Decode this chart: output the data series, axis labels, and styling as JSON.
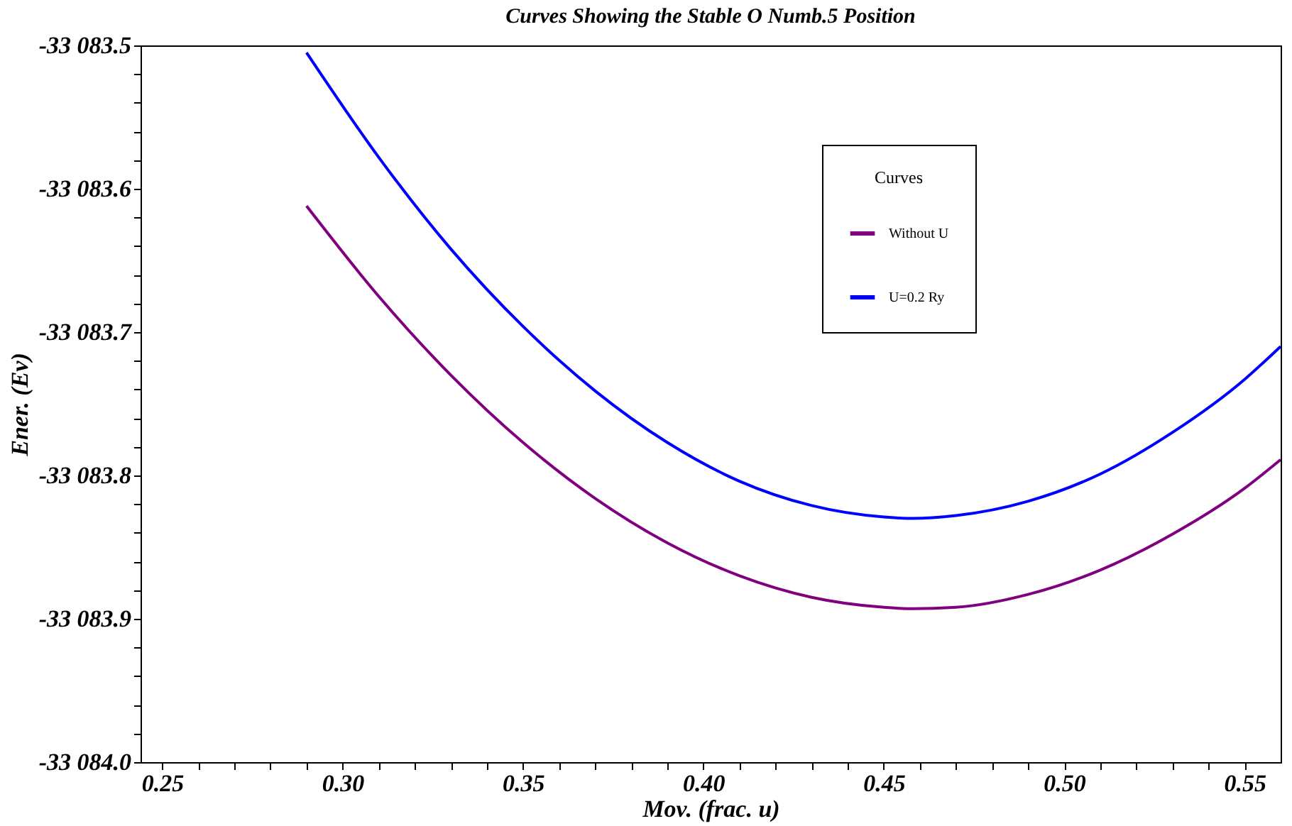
{
  "chart_data": {
    "type": "line",
    "title": "Curves Showing the Stable O Numb.5 Position",
    "xlabel": "Mov. (frac. u)",
    "ylabel": "Ener. (Ev)",
    "legend_title": "Curves",
    "legend": "top right",
    "grid": false,
    "marker": "none",
    "line_style": "solid",
    "x": [
      0.29,
      0.31,
      0.33,
      0.35,
      0.37,
      0.39,
      0.41,
      0.43,
      0.45,
      0.458,
      0.47,
      0.49,
      0.51,
      0.53,
      0.55,
      0.56
    ],
    "series": [
      {
        "name": "Without U",
        "color": "#800080",
        "values": [
          -33083.612,
          -33083.675,
          -33083.73,
          -33083.777,
          -33083.816,
          -33083.847,
          -33083.87,
          -33083.885,
          -33083.892,
          -33083.893,
          -33083.892,
          -33083.883,
          -33083.866,
          -33083.841,
          -33083.809,
          -33083.789
        ]
      },
      {
        "name": "U=0.2 Ry",
        "color": "#0000ff",
        "values": [
          -33083.505,
          -33083.578,
          -33083.642,
          -33083.696,
          -33083.741,
          -33083.777,
          -33083.804,
          -33083.821,
          -33083.829,
          -33083.83,
          -33083.828,
          -33083.818,
          -33083.799,
          -33083.77,
          -33083.733,
          -33083.71
        ]
      }
    ],
    "xlim": [
      0.244,
      0.56
    ],
    "ylim": [
      -33084.0,
      -33083.5
    ],
    "xticks": [
      0.25,
      {
        "value": 0.26,
        "label": null
      },
      {
        "value": 0.27,
        "label": null
      },
      {
        "value": 0.28,
        "label": null
      },
      {
        "value": 0.29,
        "label": null
      },
      {
        "value": 0.3,
        "label": "0.30"
      },
      {
        "value": 0.31,
        "label": null
      },
      {
        "value": 0.32,
        "label": null
      },
      {
        "value": 0.33,
        "label": null
      },
      {
        "value": 0.34,
        "label": null
      },
      0.35,
      {
        "value": 0.36,
        "label": null
      },
      {
        "value": 0.37,
        "label": null
      },
      {
        "value": 0.38,
        "label": null
      },
      {
        "value": 0.39,
        "label": null
      },
      {
        "value": 0.4,
        "label": "0.40"
      },
      {
        "value": 0.41,
        "label": null
      },
      {
        "value": 0.42,
        "label": null
      },
      {
        "value": 0.43,
        "label": null
      },
      {
        "value": 0.44,
        "label": null
      },
      0.45,
      {
        "value": 0.46,
        "label": null
      },
      {
        "value": 0.47,
        "label": null
      },
      {
        "value": 0.48,
        "label": null
      },
      {
        "value": 0.49,
        "label": null
      },
      {
        "value": 0.5,
        "label": "0.50"
      },
      {
        "value": 0.51,
        "label": null
      },
      {
        "value": 0.52,
        "label": null
      },
      {
        "value": 0.53,
        "label": null
      },
      {
        "value": 0.54,
        "label": null
      },
      0.55
    ],
    "yticks": [
      {
        "value": -33084.0,
        "label": "-33 084.0"
      },
      {
        "value": -33083.98,
        "label": null
      },
      {
        "value": -33083.96,
        "label": null
      },
      {
        "value": -33083.94,
        "label": null
      },
      {
        "value": -33083.92,
        "label": null
      },
      {
        "value": -33083.9,
        "label": "-33 083.9"
      },
      {
        "value": -33083.88,
        "label": null
      },
      {
        "value": -33083.86,
        "label": null
      },
      {
        "value": -33083.84,
        "label": null
      },
      {
        "value": -33083.82,
        "label": null
      },
      {
        "value": -33083.8,
        "label": "-33 083.8"
      },
      {
        "value": -33083.78,
        "label": null
      },
      {
        "value": -33083.76,
        "label": null
      },
      {
        "value": -33083.74,
        "label": null
      },
      {
        "value": -33083.72,
        "label": null
      },
      {
        "value": -33083.7,
        "label": "-33 083.7"
      },
      {
        "value": -33083.68,
        "label": null
      },
      {
        "value": -33083.66,
        "label": null
      },
      {
        "value": -33083.64,
        "label": null
      },
      {
        "value": -33083.62,
        "label": null
      },
      {
        "value": -33083.6,
        "label": "-33 083.6"
      },
      {
        "value": -33083.58,
        "label": null
      },
      {
        "value": -33083.56,
        "label": null
      },
      {
        "value": -33083.54,
        "label": null
      },
      {
        "value": -33083.52,
        "label": null
      },
      {
        "value": -33083.5,
        "label": "-33 083.5"
      }
    ]
  }
}
